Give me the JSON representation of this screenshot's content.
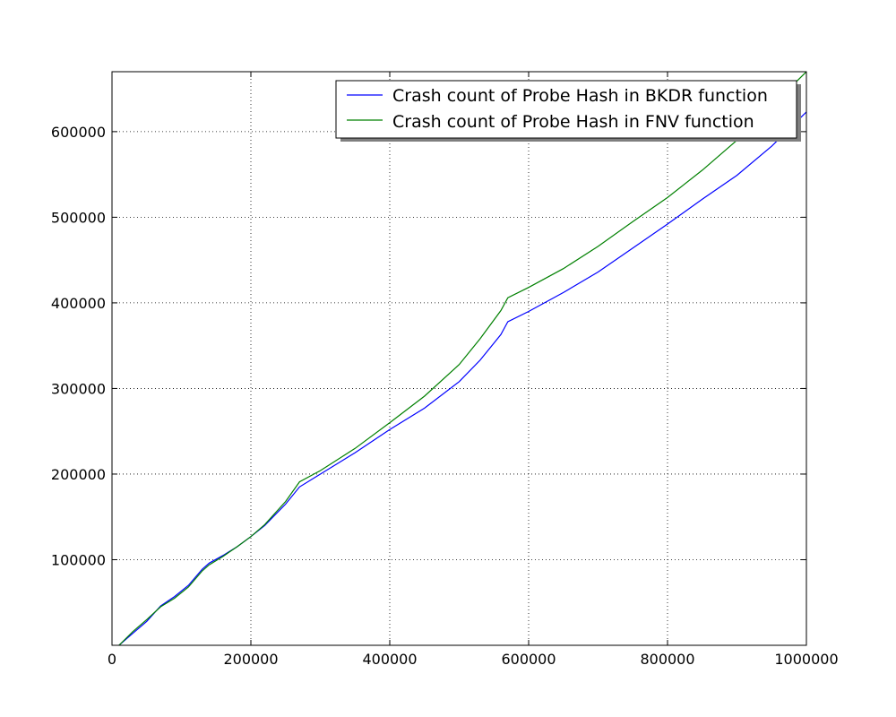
{
  "chart_data": {
    "type": "line",
    "title": "",
    "xlabel": "",
    "ylabel": "",
    "xlim": [
      0,
      1000000
    ],
    "ylim": [
      0,
      670000
    ],
    "grid": true,
    "legend_position": "top-right",
    "x_ticks": [
      0,
      200000,
      400000,
      600000,
      800000,
      1000000
    ],
    "x_tick_labels": [
      "0",
      "200000",
      "400000",
      "600000",
      "800000",
      "1000000"
    ],
    "y_ticks": [
      100000,
      200000,
      300000,
      400000,
      500000,
      600000
    ],
    "y_tick_labels": [
      "100000",
      "200000",
      "300000",
      "400000",
      "500000",
      "600000"
    ],
    "series": [
      {
        "name": "Crash count of Probe Hash in BKDR function",
        "color": "#0000ff",
        "x": [
          10000,
          30000,
          50000,
          70000,
          90000,
          110000,
          130000,
          140000,
          160000,
          180000,
          200000,
          220000,
          250000,
          270000,
          300000,
          350000,
          400000,
          450000,
          500000,
          530000,
          560000,
          570000,
          600000,
          650000,
          700000,
          750000,
          800000,
          850000,
          900000,
          950000,
          1000000
        ],
        "y": [
          0,
          14000,
          28000,
          46000,
          57000,
          70000,
          89000,
          96000,
          105000,
          115000,
          127000,
          140000,
          165000,
          185000,
          200000,
          225000,
          252000,
          277000,
          308000,
          333000,
          363000,
          378000,
          390000,
          412000,
          436000,
          464000,
          492000,
          521000,
          549000,
          583000,
          623000
        ]
      },
      {
        "name": "Crash count of Probe Hash in FNV function",
        "color": "#008000",
        "x": [
          10000,
          30000,
          50000,
          70000,
          90000,
          110000,
          130000,
          140000,
          160000,
          180000,
          200000,
          220000,
          250000,
          270000,
          300000,
          350000,
          400000,
          450000,
          500000,
          530000,
          560000,
          570000,
          600000,
          650000,
          700000,
          750000,
          800000,
          850000,
          900000,
          950000,
          1000000
        ],
        "y": [
          0,
          16000,
          30000,
          45000,
          55000,
          68000,
          87000,
          94000,
          104000,
          115000,
          127000,
          141000,
          168000,
          191000,
          204000,
          230000,
          260000,
          291000,
          328000,
          358000,
          391000,
          406000,
          418000,
          440000,
          466000,
          495000,
          523000,
          555000,
          590000,
          630000,
          670000
        ]
      }
    ]
  }
}
